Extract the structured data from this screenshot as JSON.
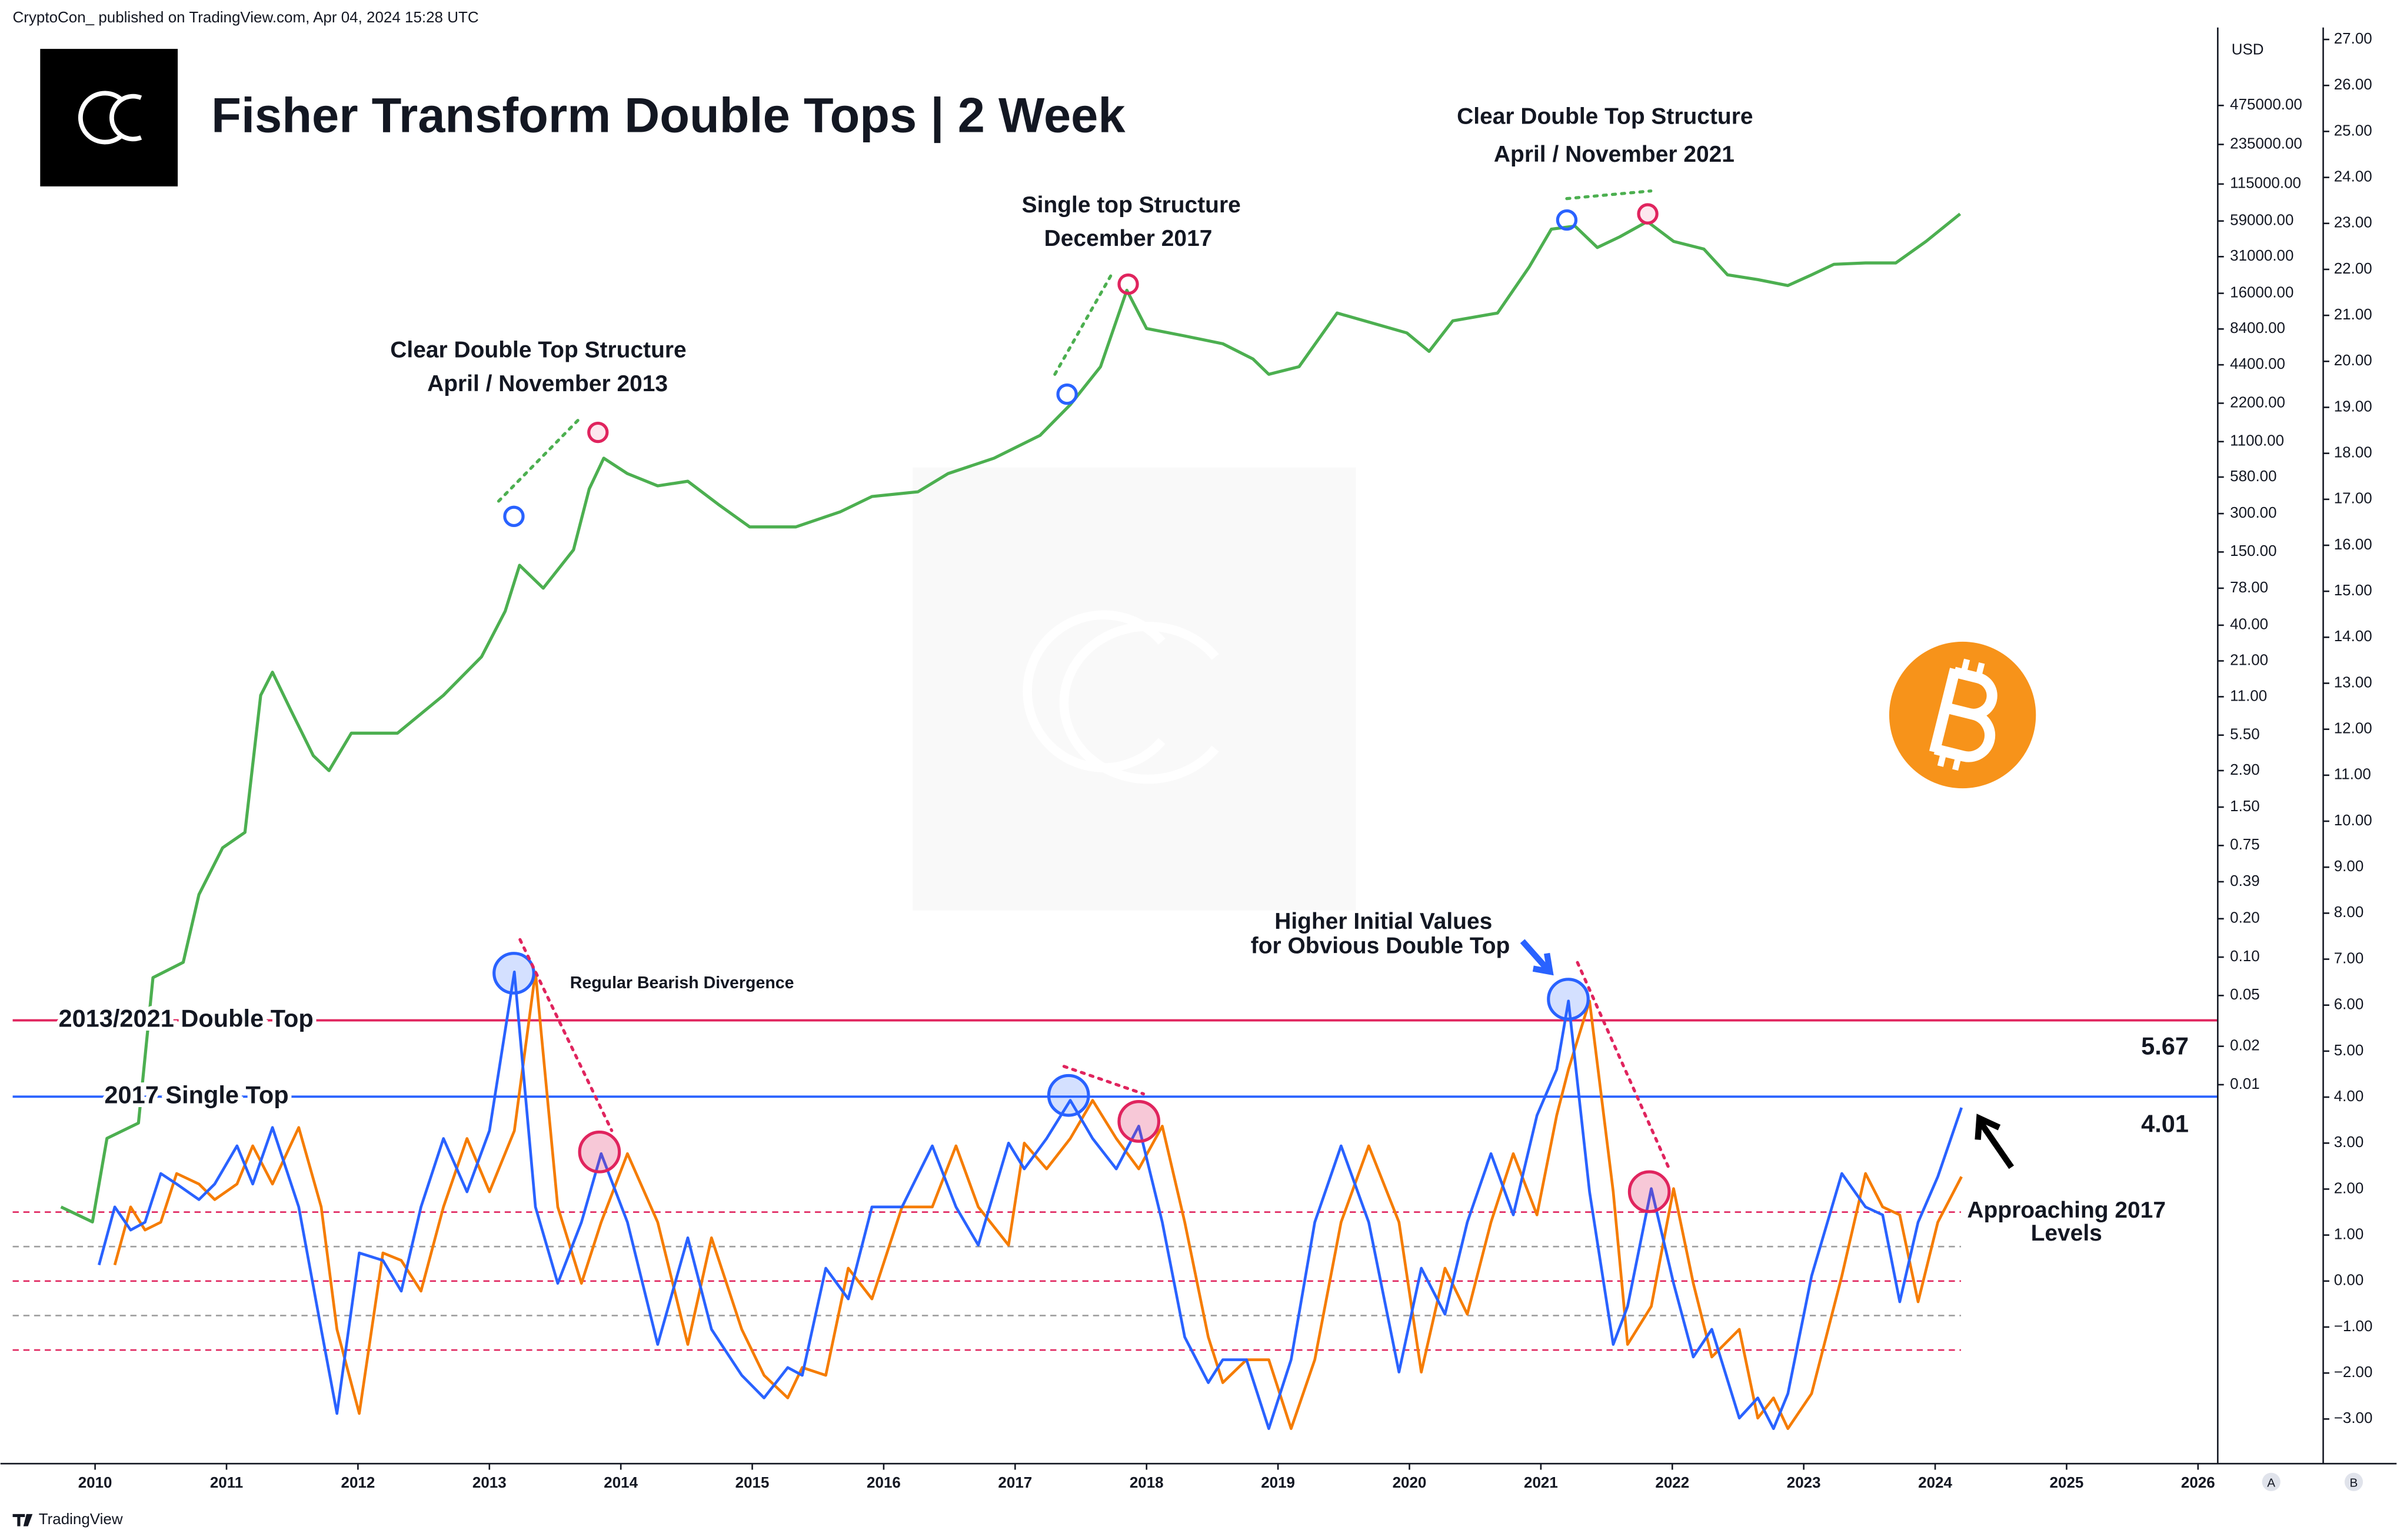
{
  "header": {
    "publisher": "CryptoCon_ published on TradingView.com, Apr 04, 2024 15:28 UTC",
    "footer": "TradingView",
    "scale_buttons": [
      "A",
      "B"
    ]
  },
  "chart_data": [
    {
      "type": "line",
      "title": "Fisher Transform Double Tops | 2 Week",
      "y_unit": "USD",
      "color": "#4caf50",
      "log_scale": true,
      "x": [
        2009.74,
        2009.98,
        2010.09,
        2010.33,
        2010.44,
        2010.67,
        2010.79,
        2010.97,
        2011.14,
        2011.26,
        2011.35,
        2011.49,
        2011.66,
        2011.78,
        2011.95,
        2012.3,
        2012.65,
        2012.94,
        2013.12,
        2013.23,
        2013.41,
        2013.64,
        2013.76,
        2013.87,
        2014.05,
        2014.28,
        2014.51,
        2014.74,
        2014.98,
        2015.33,
        2015.67,
        2015.91,
        2016.26,
        2016.49,
        2016.84,
        2017.19,
        2017.42,
        2017.65,
        2017.85,
        2018.0,
        2018.29,
        2018.58,
        2018.81,
        2018.93,
        2019.16,
        2019.45,
        2019.74,
        2019.98,
        2020.15,
        2020.33,
        2020.67,
        2020.91,
        2021.08,
        2021.26,
        2021.43,
        2021.6,
        2021.81,
        2022.01,
        2022.24,
        2022.42,
        2022.65,
        2022.88,
        2023.06,
        2023.23,
        2023.47,
        2023.7,
        2023.93,
        2024.19
      ],
      "values": [
        0.0011,
        0.00084,
        0.0038,
        0.005,
        0.069,
        0.091,
        0.31,
        0.72,
        0.95,
        11.3,
        17.1,
        8.6,
        3.8,
        2.9,
        5.7,
        5.7,
        11.3,
        22.6,
        51.6,
        118,
        78,
        156,
        469,
        815,
        618,
        495,
        538,
        356,
        236,
        236,
        310,
        408,
        444,
        618,
        815,
        1230,
        2140,
        4260,
        16900,
        8470,
        7400,
        6440,
        4890,
        3710,
        4260,
        11200,
        9200,
        7820,
        5610,
        9730,
        11200,
        25600,
        50900,
        53800,
        36600,
        44400,
        58500,
        40800,
        35600,
        22300,
        20500,
        18400,
        22300,
        27000,
        27700,
        27700,
        40800,
        67100
      ],
      "xlim": [
        2009.28,
        2026.15
      ],
      "xticks": [
        2010,
        2011,
        2012,
        2013,
        2014,
        2015,
        2016,
        2017,
        2018,
        2019,
        2020,
        2021,
        2022,
        2023,
        2024,
        2025,
        2026
      ],
      "ylim": [
        1.07e-05,
        1940000
      ],
      "yticks": [
        {
          "value": 475000,
          "label": "475000.00"
        },
        {
          "value": 235000,
          "label": "235000.00"
        },
        {
          "value": 115000,
          "label": "115000.00"
        },
        {
          "value": 59000,
          "label": "59000.00"
        },
        {
          "value": 31000,
          "label": "31000.00"
        },
        {
          "value": 16000,
          "label": "16000.00"
        },
        {
          "value": 8400,
          "label": "8400.00"
        },
        {
          "value": 4400,
          "label": "4400.00"
        },
        {
          "value": 2200,
          "label": "2200.00"
        },
        {
          "value": 1100,
          "label": "1100.00"
        },
        {
          "value": 580,
          "label": "580.00"
        },
        {
          "value": 300,
          "label": "300.00"
        },
        {
          "value": 150,
          "label": "150.00"
        },
        {
          "value": 78,
          "label": "78.00"
        },
        {
          "value": 40,
          "label": "40.00"
        },
        {
          "value": 21,
          "label": "21.00"
        },
        {
          "value": 11,
          "label": "11.00"
        },
        {
          "value": 5.5,
          "label": "5.50"
        },
        {
          "value": 2.9,
          "label": "2.90"
        },
        {
          "value": 1.5,
          "label": "1.50"
        },
        {
          "value": 0.75,
          "label": "0.75"
        },
        {
          "value": 0.39,
          "label": "0.39"
        },
        {
          "value": 0.2,
          "label": "0.20"
        },
        {
          "value": 0.1,
          "label": "0.10"
        },
        {
          "value": 0.05,
          "label": "0.05"
        },
        {
          "value": 0.02,
          "label": "0.02"
        },
        {
          "value": 0.01,
          "label": "0.01"
        }
      ],
      "annotations": [
        "Clear Double Top Structure",
        "April / November 2013",
        "Single top Structure",
        "December 2017",
        "Clear Double Top Structure",
        "April / November 2021"
      ]
    },
    {
      "type": "line",
      "x": [
        2010.03,
        2010.15,
        2010.27,
        2010.38,
        2010.5,
        2010.62,
        2010.79,
        2010.91,
        2011.08,
        2011.2,
        2011.35,
        2011.55,
        2011.72,
        2011.84,
        2012.01,
        2012.19,
        2012.33,
        2012.48,
        2012.65,
        2012.83,
        2013.0,
        2013.19,
        2013.35,
        2013.52,
        2013.7,
        2013.85,
        2014.05,
        2014.28,
        2014.51,
        2014.69,
        2014.92,
        2015.09,
        2015.27,
        2015.38,
        2015.56,
        2015.73,
        2015.91,
        2016.14,
        2016.37,
        2016.55,
        2016.72,
        2016.95,
        2017.07,
        2017.24,
        2017.42,
        2017.59,
        2017.77,
        2017.94,
        2018.12,
        2018.29,
        2018.47,
        2018.58,
        2018.76,
        2018.93,
        2019.1,
        2019.28,
        2019.48,
        2019.69,
        2019.92,
        2020.09,
        2020.27,
        2020.44,
        2020.62,
        2020.79,
        2020.97,
        2021.12,
        2021.21,
        2021.37,
        2021.55,
        2021.66,
        2021.84,
        2022.01,
        2022.16,
        2022.3,
        2022.51,
        2022.65,
        2022.77,
        2022.88,
        2023.06,
        2023.29,
        2023.47,
        2023.6,
        2023.73,
        2023.87,
        2024.02,
        2024.2
      ],
      "series": [
        {
          "color": "#f57c00",
          "values": [
            null,
            0.35,
            1.61,
            1.11,
            1.28,
            2.34,
            2.11,
            1.77,
            2.11,
            2.94,
            2.11,
            3.34,
            1.61,
            -1.05,
            -2.88,
            0.61,
            0.45,
            -0.22,
            1.61,
            3.1,
            1.94,
            3.27,
            6.72,
            1.61,
            -0.05,
            1.28,
            2.77,
            1.28,
            -1.38,
            0.94,
            -1.05,
            -2.05,
            -2.54,
            -1.88,
            -2.05,
            0.28,
            -0.39,
            1.61,
            1.61,
            2.94,
            1.61,
            0.78,
            3.0,
            2.44,
            3.1,
            3.93,
            3.1,
            2.44,
            3.37,
            1.28,
            -1.22,
            -2.21,
            -1.71,
            -1.71,
            -3.21,
            -1.71,
            1.28,
            2.94,
            1.28,
            -1.98,
            0.28,
            -0.72,
            1.28,
            2.77,
            1.44,
            3.6,
            4.6,
            6.09,
            1.94,
            -1.38,
            -0.55,
            2.01,
            -0.05,
            -1.65,
            -1.05,
            -2.98,
            -2.54,
            -3.21,
            -2.45,
            0.11,
            2.34,
            1.61,
            1.44,
            -0.45,
            1.28,
            2.27
          ]
        },
        {
          "color": "#2962ff",
          "values": [
            0.35,
            1.61,
            1.11,
            1.28,
            2.34,
            2.11,
            1.77,
            2.11,
            2.94,
            2.11,
            3.34,
            1.61,
            -1.05,
            -2.88,
            0.61,
            0.45,
            -0.22,
            1.61,
            3.1,
            1.94,
            3.27,
            6.72,
            1.61,
            -0.05,
            1.28,
            2.77,
            1.28,
            -1.38,
            0.94,
            -1.05,
            -2.05,
            -2.54,
            -1.88,
            -2.05,
            0.28,
            -0.39,
            1.61,
            1.61,
            2.94,
            1.61,
            0.78,
            3.0,
            2.44,
            3.1,
            3.93,
            3.1,
            2.44,
            3.37,
            1.28,
            -1.22,
            -2.21,
            -1.71,
            -1.71,
            -3.21,
            -1.71,
            1.28,
            2.94,
            1.28,
            -1.98,
            0.28,
            -0.72,
            1.28,
            2.77,
            1.44,
            3.6,
            4.6,
            6.09,
            1.94,
            -1.38,
            -0.55,
            2.01,
            -0.05,
            -1.65,
            -1.05,
            -2.98,
            -2.54,
            -3.21,
            -2.45,
            0.11,
            2.34,
            1.61,
            1.44,
            -0.45,
            1.28,
            2.27,
            3.77
          ]
        }
      ],
      "ylim": [
        -3.97,
        27.26
      ],
      "yticks": [
        {
          "value": 27,
          "label": "27.00"
        },
        {
          "value": 26,
          "label": "26.00"
        },
        {
          "value": 25,
          "label": "25.00"
        },
        {
          "value": 24,
          "label": "24.00"
        },
        {
          "value": 23,
          "label": "23.00"
        },
        {
          "value": 22,
          "label": "22.00"
        },
        {
          "value": 21,
          "label": "21.00"
        },
        {
          "value": 20,
          "label": "20.00"
        },
        {
          "value": 19,
          "label": "19.00"
        },
        {
          "value": 18,
          "label": "18.00"
        },
        {
          "value": 17,
          "label": "17.00"
        },
        {
          "value": 16,
          "label": "16.00"
        },
        {
          "value": 15,
          "label": "15.00"
        },
        {
          "value": 14,
          "label": "14.00"
        },
        {
          "value": 13,
          "label": "13.00"
        },
        {
          "value": 12,
          "label": "12.00"
        },
        {
          "value": 11,
          "label": "11.00"
        },
        {
          "value": 10,
          "label": "10.00"
        },
        {
          "value": 9,
          "label": "9.00"
        },
        {
          "value": 8,
          "label": "8.00"
        },
        {
          "value": 7,
          "label": "7.00"
        },
        {
          "value": 6,
          "label": "6.00"
        },
        {
          "value": 5,
          "label": "5.00"
        },
        {
          "value": 4,
          "label": "4.00"
        },
        {
          "value": 3,
          "label": "3.00"
        },
        {
          "value": 2,
          "label": "2.00"
        },
        {
          "value": 1,
          "label": "1.00"
        },
        {
          "value": 0,
          "label": "0.00"
        },
        {
          "value": -1,
          "label": "−1.00"
        },
        {
          "value": -2,
          "label": "−2.00"
        },
        {
          "value": -3,
          "label": "−3.00"
        }
      ],
      "levels": [
        {
          "value": 1.5,
          "color": "#e0245e"
        },
        {
          "value": 0.75,
          "color": "#9e9e9e"
        },
        {
          "value": 0,
          "color": "#e0245e"
        },
        {
          "value": -0.75,
          "color": "#9e9e9e"
        },
        {
          "value": -1.5,
          "color": "#e0245e"
        }
      ],
      "reference_lines": [
        {
          "label": "2013/2021 Double Top",
          "value": 5.67,
          "color": "#e0245e"
        },
        {
          "label": "2017 Single Top",
          "value": 4.01,
          "color": "#2962ff"
        }
      ],
      "annotations": [
        {
          "text": "Regular Bearish Divergence",
          "color": "#e0245e"
        },
        {
          "text": "Higher Initial Values",
          "color": "#000000"
        },
        {
          "text": "for Obvious Double Top",
          "color": "#000000"
        },
        {
          "text": "Approaching 2017",
          "color": "#000000"
        },
        {
          "text": "Levels",
          "color": "#000000"
        }
      ]
    }
  ]
}
